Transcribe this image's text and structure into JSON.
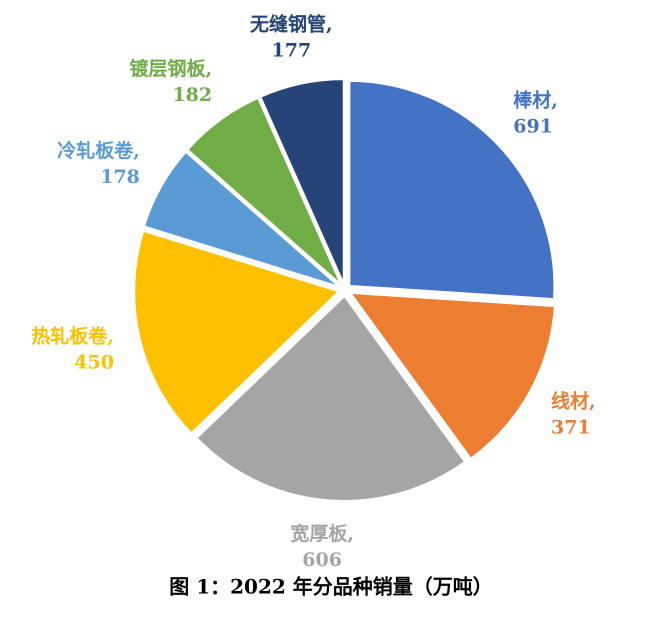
{
  "chart_data": {
    "type": "pie",
    "title": "图 1：2022 年分品种销量（万吨）",
    "categories": [
      "棒材",
      "线材",
      "宽厚板",
      "热轧板卷",
      "冷轧板卷",
      "镀层钢板",
      "无缝钢管"
    ],
    "values": [
      691,
      371,
      606,
      450,
      178,
      182,
      177
    ],
    "colors": [
      "#4472c4",
      "#ed7d31",
      "#a5a5a5",
      "#ffc000",
      "#5b9bd5",
      "#70ad47",
      "#264478"
    ],
    "label_separator": ","
  }
}
